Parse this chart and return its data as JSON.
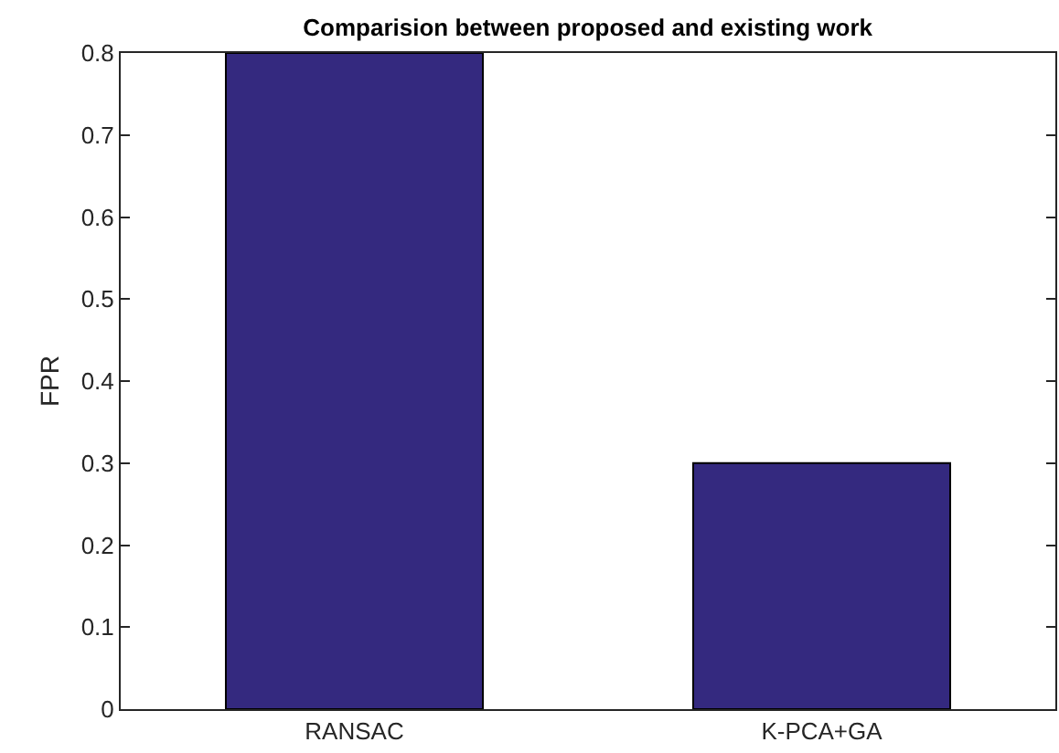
{
  "chart_data": {
    "type": "bar",
    "title": "Comparision between proposed and existing work",
    "ylabel": "FPR",
    "categories": [
      "RANSAC",
      "K-PCA+GA"
    ],
    "values": [
      0.8,
      0.3
    ],
    "color": "#34297f",
    "ylim": [
      0,
      0.8
    ],
    "yticks": [
      0,
      0.1,
      0.2,
      0.3,
      0.4,
      0.5,
      0.6,
      0.7,
      0.8
    ],
    "grid": false
  }
}
